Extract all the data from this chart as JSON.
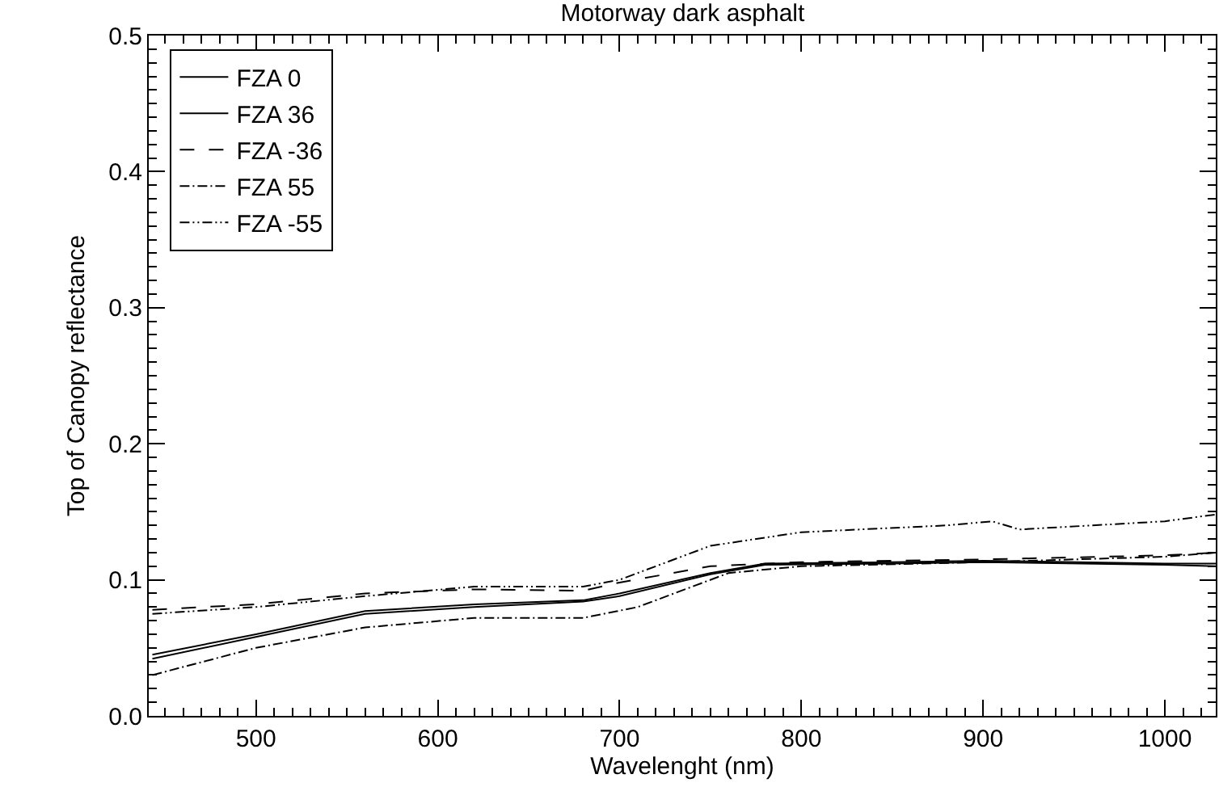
{
  "chart_data": {
    "type": "line",
    "title": "Motorway dark asphalt",
    "xlabel": "Wavelenght (nm)",
    "ylabel": "Top of Canopy reflectance",
    "xlim": [
      441,
      1028
    ],
    "xticks": [
      500,
      600,
      700,
      800,
      900,
      1000
    ],
    "ylim": [
      0,
      0.5
    ],
    "yticks": [
      {
        "value": 0,
        "label": "0.0"
      },
      0.1,
      0.2,
      0.3,
      0.4,
      0.5
    ],
    "legend": "top left",
    "grid": false,
    "marker": "none",
    "series": [
      {
        "name": "FZA 0",
        "color": "#000000",
        "line_style": "solid",
        "x": [
          443,
          500,
          560,
          620,
          680,
          700,
          750,
          780,
          850,
          900,
          1000,
          1028
        ],
        "values": [
          0.045,
          0.06,
          0.077,
          0.082,
          0.085,
          0.09,
          0.105,
          0.112,
          0.113,
          0.114,
          0.112,
          0.112
        ]
      },
      {
        "name": "FZA 36",
        "color": "#000000",
        "line_style": "solid",
        "x": [
          443,
          500,
          560,
          620,
          680,
          700,
          750,
          780,
          850,
          900,
          1000,
          1028
        ],
        "values": [
          0.042,
          0.058,
          0.075,
          0.08,
          0.084,
          0.088,
          0.104,
          0.111,
          0.112,
          0.113,
          0.111,
          0.11
        ]
      },
      {
        "name": "FZA -36",
        "color": "#000000",
        "line_style": "dashed",
        "x": [
          443,
          500,
          560,
          620,
          680,
          700,
          750,
          800,
          900,
          1000,
          1028
        ],
        "values": [
          0.078,
          0.082,
          0.09,
          0.093,
          0.092,
          0.098,
          0.11,
          0.113,
          0.115,
          0.118,
          0.12
        ]
      },
      {
        "name": "FZA 55",
        "color": "#000000",
        "line_style": "dashdot",
        "x": [
          443,
          500,
          560,
          620,
          680,
          710,
          760,
          800,
          900,
          1000,
          1028
        ],
        "values": [
          0.03,
          0.05,
          0.065,
          0.072,
          0.072,
          0.08,
          0.105,
          0.11,
          0.113,
          0.117,
          0.12
        ]
      },
      {
        "name": "FZA -55",
        "color": "#000000",
        "line_style": "dashdotdot",
        "x": [
          443,
          500,
          560,
          620,
          680,
          700,
          750,
          800,
          880,
          905,
          920,
          1000,
          1028
        ],
        "values": [
          0.075,
          0.08,
          0.088,
          0.095,
          0.095,
          0.1,
          0.125,
          0.135,
          0.14,
          0.143,
          0.137,
          0.143,
          0.148
        ]
      }
    ]
  }
}
